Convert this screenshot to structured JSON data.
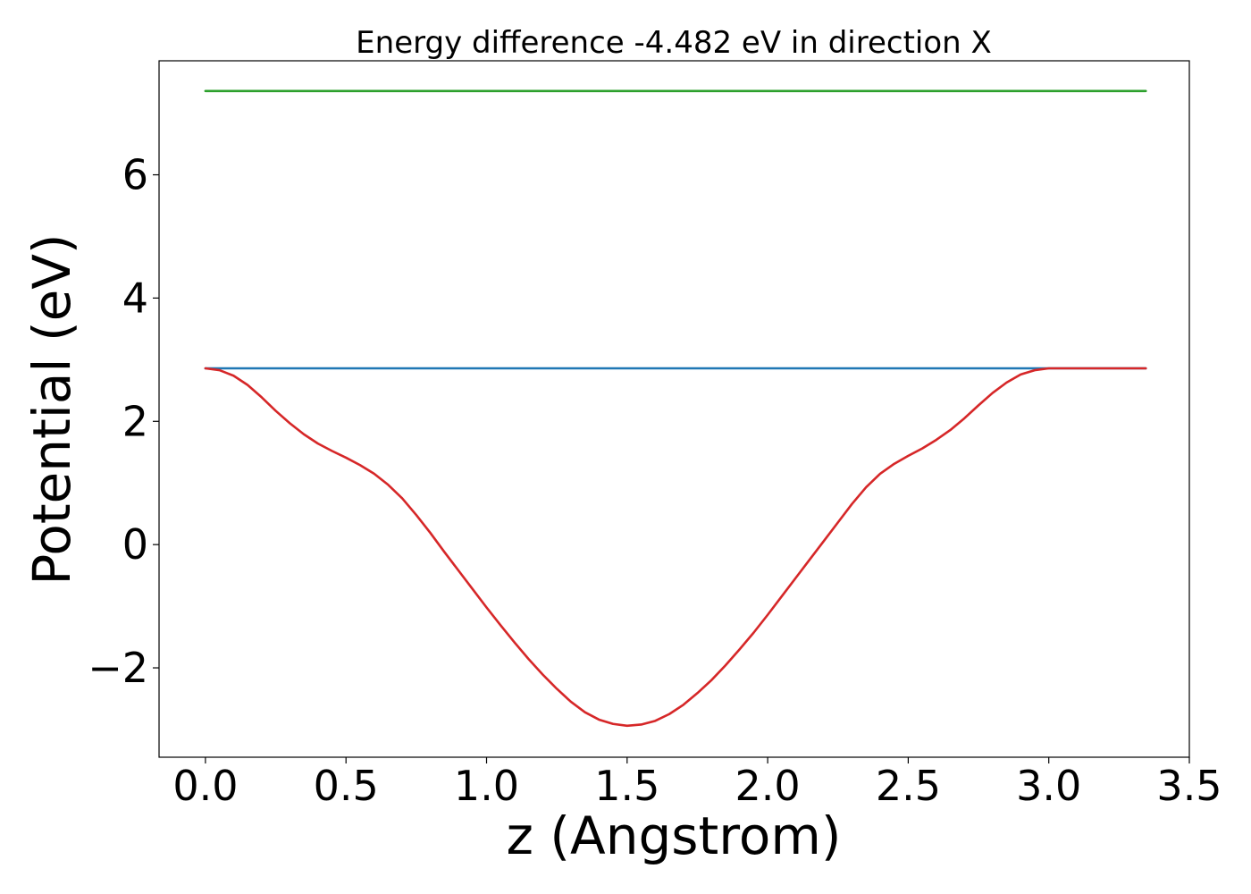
{
  "chart_data": {
    "type": "line",
    "title": "Energy difference -4.482 eV in direction X",
    "xlabel": "z (Angstrom)",
    "ylabel": "Potential (eV)",
    "xlim": [
      -0.165,
      3.5
    ],
    "ylim": [
      -3.45,
      7.85
    ],
    "xticks": [
      0.0,
      0.5,
      1.0,
      1.5,
      2.0,
      2.5,
      3.0,
      3.5
    ],
    "xtick_labels": [
      "0.0",
      "0.5",
      "1.0",
      "1.5",
      "2.0",
      "2.5",
      "3.0",
      "3.5"
    ],
    "yticks": [
      -2,
      0,
      2,
      4,
      6
    ],
    "ytick_labels": [
      "−2",
      "0",
      "2",
      "4",
      "6"
    ],
    "grid": false,
    "legend": "none",
    "series": [
      {
        "color": "#2ca02c",
        "x": [
          0.0,
          3.345
        ],
        "y": [
          7.36,
          7.36
        ]
      },
      {
        "color": "#1f77b4",
        "x": [
          0.0,
          3.345
        ],
        "y": [
          2.86,
          2.86
        ]
      },
      {
        "color": "#d62728",
        "x": [
          0.0,
          0.05,
          0.1,
          0.15,
          0.2,
          0.25,
          0.3,
          0.35,
          0.4,
          0.45,
          0.5,
          0.55,
          0.6,
          0.65,
          0.7,
          0.75,
          0.8,
          0.85,
          0.9,
          0.95,
          1.0,
          1.05,
          1.1,
          1.15,
          1.2,
          1.25,
          1.3,
          1.35,
          1.4,
          1.45,
          1.5,
          1.55,
          1.6,
          1.65,
          1.7,
          1.75,
          1.8,
          1.85,
          1.9,
          1.95,
          2.0,
          2.05,
          2.1,
          2.15,
          2.2,
          2.25,
          2.3,
          2.35,
          2.4,
          2.45,
          2.5,
          2.55,
          2.6,
          2.65,
          2.7,
          2.75,
          2.8,
          2.85,
          2.9,
          2.95,
          3.0,
          3.05,
          3.1,
          3.15,
          3.2,
          3.25,
          3.3,
          3.345
        ],
        "y": [
          2.86,
          2.83,
          2.74,
          2.59,
          2.39,
          2.17,
          1.97,
          1.79,
          1.64,
          1.52,
          1.41,
          1.29,
          1.15,
          0.97,
          0.75,
          0.48,
          0.19,
          -0.12,
          -0.42,
          -0.72,
          -1.02,
          -1.31,
          -1.59,
          -1.86,
          -2.11,
          -2.34,
          -2.55,
          -2.72,
          -2.84,
          -2.91,
          -2.94,
          -2.92,
          -2.86,
          -2.75,
          -2.6,
          -2.41,
          -2.2,
          -1.96,
          -1.7,
          -1.43,
          -1.14,
          -0.84,
          -0.54,
          -0.24,
          0.06,
          0.36,
          0.66,
          0.93,
          1.15,
          1.31,
          1.44,
          1.56,
          1.7,
          1.86,
          2.05,
          2.26,
          2.46,
          2.63,
          2.76,
          2.83,
          2.86,
          2.86,
          2.86,
          2.86,
          2.86,
          2.86,
          2.86,
          2.86
        ]
      }
    ]
  }
}
